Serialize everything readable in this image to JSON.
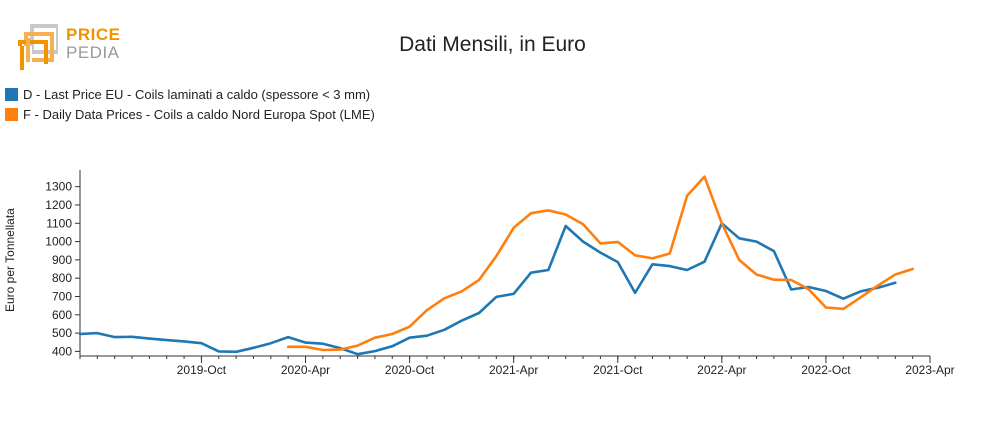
{
  "logo": {
    "line1": "PRICE",
    "line2": "PEDIA"
  },
  "colors": {
    "series_d": "#1f77b4",
    "series_f": "#ff7f0e",
    "logo_orange": "#f29400",
    "logo_gray": "#9a9a9a"
  },
  "chart_data": {
    "type": "line",
    "title": "Dati Mensili, in Euro",
    "xlabel": "",
    "ylabel": "Euro per Tonnellata",
    "ylim": [
      375,
      1380
    ],
    "yticks": [
      400,
      500,
      600,
      700,
      800,
      900,
      1000,
      1100,
      1200,
      1300
    ],
    "x_range": [
      "2019-03",
      "2023-04"
    ],
    "xtick_labels": [
      "2019-Oct",
      "2020-Apr",
      "2020-Oct",
      "2021-Apr",
      "2021-Oct",
      "2022-Apr",
      "2022-Oct",
      "2023-Apr"
    ],
    "xtick_dates": [
      "2019-10",
      "2020-04",
      "2020-10",
      "2021-04",
      "2021-10",
      "2022-04",
      "2022-10",
      "2023-04"
    ],
    "grid": false,
    "legend_position": "top-left",
    "series": [
      {
        "name": "D - Last Price EU - Coils laminati a caldo (spessore < 3 mm)",
        "color": "#1f77b4",
        "x": [
          "2019-03",
          "2019-04",
          "2019-05",
          "2019-06",
          "2019-07",
          "2019-08",
          "2019-09",
          "2019-10",
          "2019-11",
          "2019-12",
          "2020-01",
          "2020-02",
          "2020-03",
          "2020-04",
          "2020-05",
          "2020-06",
          "2020-07",
          "2020-08",
          "2020-09",
          "2020-10",
          "2020-11",
          "2020-12",
          "2021-01",
          "2021-02",
          "2021-03",
          "2021-04",
          "2021-05",
          "2021-06",
          "2021-07",
          "2021-08",
          "2021-09",
          "2021-10",
          "2021-11",
          "2021-12",
          "2022-01",
          "2022-02",
          "2022-03",
          "2022-04",
          "2022-05",
          "2022-06",
          "2022-07",
          "2022-08",
          "2022-09",
          "2022-10",
          "2022-11",
          "2022-12",
          "2023-01",
          "2023-02",
          "2023-03"
        ],
        "values": [
          495,
          500,
          478,
          480,
          470,
          462,
          455,
          445,
          400,
          398,
          420,
          445,
          478,
          448,
          442,
          418,
          385,
          402,
          428,
          475,
          486,
          518,
          568,
          610,
          698,
          715,
          830,
          845,
          1085,
          1000,
          940,
          888,
          720,
          876,
          866,
          845,
          890,
          1100,
          1018,
          1000,
          948,
          738,
          752,
          730,
          688,
          728,
          748,
          775,
          null
        ]
      },
      {
        "name": "F - Daily Data Prices - Coils a caldo Nord Europa Spot (LME)",
        "color": "#ff7f0e",
        "x": [
          "2020-03",
          "2020-04",
          "2020-05",
          "2020-06",
          "2020-07",
          "2020-08",
          "2020-09",
          "2020-10",
          "2020-11",
          "2020-12",
          "2021-01",
          "2021-02",
          "2021-03",
          "2021-04",
          "2021-05",
          "2021-06",
          "2021-07",
          "2021-08",
          "2021-09",
          "2021-10",
          "2021-11",
          "2021-12",
          "2022-01",
          "2022-02",
          "2022-03",
          "2022-04",
          "2022-05",
          "2022-06",
          "2022-07",
          "2022-08",
          "2022-09",
          "2022-10",
          "2022-11",
          "2022-12",
          "2023-01",
          "2023-02",
          "2023-03",
          "2023-04"
        ],
        "values": [
          425,
          425,
          408,
          410,
          432,
          475,
          495,
          535,
          625,
          690,
          728,
          790,
          920,
          1075,
          1155,
          1170,
          1148,
          1095,
          990,
          998,
          925,
          908,
          935,
          1250,
          1355,
          1100,
          900,
          820,
          792,
          790,
          740,
          640,
          632,
          695,
          760,
          820,
          850,
          null
        ]
      }
    ]
  }
}
